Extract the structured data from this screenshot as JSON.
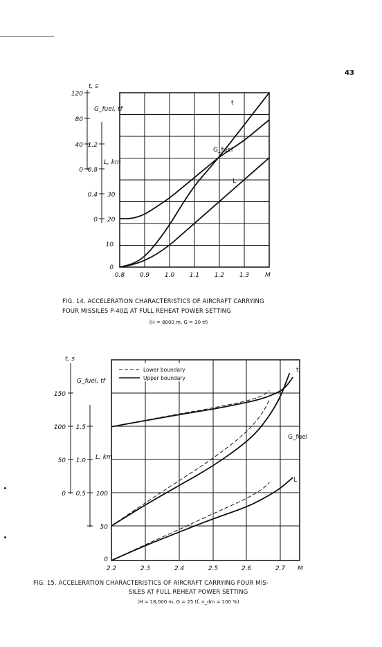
{
  "page": {
    "number": "43"
  },
  "figures": [
    {
      "caption_lines": [
        "FIG. 14. ACCELERATION CHARACTERISTICS OF AIRCRAFT CARRYING",
        "FOUR MISSILES P-40Д AT FULL  REHEAT POWER SETTING"
      ],
      "conditions": "(H = 8000 m, G = 30 tf)"
    },
    {
      "caption_lines": [
        "FIG. 15. ACCELERATION CHARACTERISTICS OF AIRCRAFT CARRYING FOUR MIS-",
        "SILES AT FULL REHEAT POWER SETTING"
      ],
      "conditions": "(H = 18,000 m, G = 25 tf, n_dm = 100 %)"
    }
  ],
  "chart_data": [
    {
      "type": "line",
      "x_label": "M",
      "x_ticks": [
        "0.8",
        "0.9",
        "1.0",
        "1.1",
        "1.2",
        "1.3"
      ],
      "xlim": [
        0.8,
        1.4
      ],
      "axes": [
        {
          "label": "t, s",
          "ticks": [
            "120",
            "80",
            "40",
            "0"
          ],
          "range": [
            0,
            120
          ]
        },
        {
          "label": "G_fuel, tf",
          "ticks": [
            "1.2",
            "0.8"
          ],
          "range": [
            0.8,
            1.2
          ]
        },
        {
          "label": "L, km",
          "ticks": [
            "0.8",
            "0.4",
            "0"
          ],
          "range": [
            0,
            0.8
          ]
        },
        {
          "label": "",
          "ticks": [
            "30",
            "20",
            "10",
            "0"
          ],
          "range": [
            0,
            30
          ]
        }
      ],
      "series": [
        {
          "name": "t",
          "x": [
            0.8,
            0.85,
            0.9,
            0.95,
            1.0,
            1.05,
            1.1,
            1.15,
            1.2,
            1.25,
            1.3,
            1.35,
            1.4
          ],
          "y": [
            0,
            2,
            7,
            17,
            29,
            43,
            56,
            66,
            76,
            87,
            98,
            109,
            120
          ]
        },
        {
          "name": "G_fuel",
          "x": [
            0.8,
            0.85,
            0.9,
            0.95,
            1.0,
            1.05,
            1.1,
            1.15,
            1.2,
            1.25,
            1.3,
            1.35,
            1.4
          ],
          "y": [
            0.8,
            0.8,
            0.82,
            0.86,
            0.9,
            0.95,
            1.0,
            1.05,
            1.1,
            1.14,
            1.18,
            1.23,
            1.28
          ]
        },
        {
          "name": "L",
          "x": [
            0.8,
            0.85,
            0.9,
            0.95,
            1.0,
            1.05,
            1.1,
            1.15,
            1.2,
            1.25,
            1.3,
            1.35,
            1.4
          ],
          "y": [
            0,
            0.02,
            0.06,
            0.12,
            0.2,
            0.3,
            0.4,
            0.5,
            0.6,
            0.7,
            0.8,
            0.9,
            1.0
          ]
        }
      ],
      "series_labels": [
        "t",
        "G_fuel",
        "L"
      ],
      "grid": true
    },
    {
      "type": "line",
      "x_label": "M",
      "x_ticks": [
        "2.2",
        "2.3",
        "2.4",
        "2.5",
        "2.6",
        "2.7"
      ],
      "xlim": [
        2.2,
        2.76
      ],
      "axes": [
        {
          "label": "t, s",
          "ticks": [
            "150",
            "100",
            "50",
            "0"
          ],
          "range": [
            0,
            150
          ]
        },
        {
          "label": "G_fuel, tf",
          "ticks": [
            "1.5",
            "1.0",
            "0.5"
          ],
          "range": [
            0.5,
            1.5
          ]
        },
        {
          "label": "L, km",
          "ticks": [
            "100",
            "50",
            "0"
          ],
          "range": [
            0,
            100
          ]
        }
      ],
      "legend": {
        "position": "top-center",
        "entries": [
          {
            "style": "dashed",
            "label": "Lower boundary"
          },
          {
            "style": "solid",
            "label": "Upper boundary"
          }
        ]
      },
      "series": [
        {
          "name": "t",
          "boundary": "upper",
          "x": [
            2.2,
            2.3,
            2.4,
            2.5,
            2.6,
            2.65,
            2.7,
            2.72,
            2.74
          ],
          "y": [
            100,
            104.5,
            109,
            113,
            118,
            121,
            126,
            130,
            137
          ]
        },
        {
          "name": "t",
          "boundary": "lower",
          "x": [
            2.2,
            2.3,
            2.4,
            2.5,
            2.6,
            2.65,
            2.67
          ],
          "y": [
            100,
            104.8,
            109.5,
            114,
            119,
            123,
            127
          ]
        },
        {
          "name": "G_fuel",
          "boundary": "upper",
          "x": [
            2.2,
            2.3,
            2.4,
            2.5,
            2.6,
            2.65,
            2.7,
            2.73
          ],
          "y": [
            0.5,
            0.72,
            0.92,
            1.12,
            1.37,
            1.55,
            1.82,
            2.1
          ]
        },
        {
          "name": "G_fuel",
          "boundary": "lower",
          "x": [
            2.2,
            2.3,
            2.4,
            2.5,
            2.6,
            2.65,
            2.67
          ],
          "y": [
            0.5,
            0.74,
            0.97,
            1.2,
            1.47,
            1.68,
            1.82
          ]
        },
        {
          "name": "L",
          "boundary": "upper",
          "x": [
            2.2,
            2.3,
            2.4,
            2.5,
            2.6,
            2.65,
            2.7,
            2.74
          ],
          "y": [
            0,
            18,
            34,
            50,
            64,
            74,
            86,
            100
          ]
        },
        {
          "name": "L",
          "boundary": "lower",
          "x": [
            2.2,
            2.3,
            2.4,
            2.5,
            2.6,
            2.65,
            2.67
          ],
          "y": [
            0,
            19,
            37,
            56,
            74,
            86,
            94
          ]
        }
      ],
      "series_labels": [
        "t",
        "G_fuel",
        "L"
      ],
      "grid": true
    }
  ]
}
